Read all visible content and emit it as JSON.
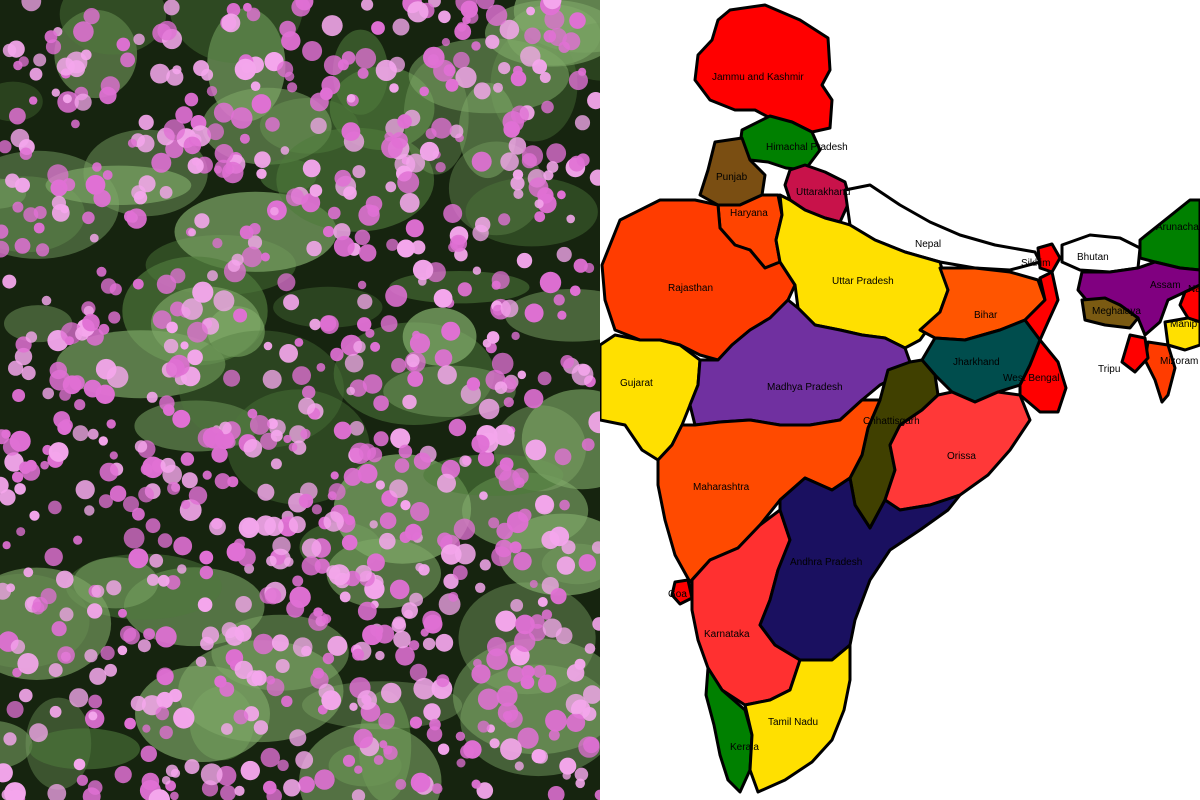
{
  "panels": {
    "left": {
      "kind": "micrograph",
      "palette": {
        "background": "#16240f",
        "cell": "#4f7a3c",
        "cell_highlight": "#7fa868",
        "particle": "#e070d4",
        "particle_light": "#f4a6ec"
      }
    },
    "right": {
      "kind": "political-map"
    }
  },
  "map": {
    "regions": [
      {
        "id": "jk",
        "name": "Jammu and Kashmir",
        "color": "#ff0000"
      },
      {
        "id": "hp",
        "name": "Himachal Pradesh",
        "color": "#008000"
      },
      {
        "id": "pb",
        "name": "Punjab",
        "color": "#7a4e12"
      },
      {
        "id": "uk",
        "name": "Uttarakhand",
        "color": "#c8124a"
      },
      {
        "id": "hr",
        "name": "Haryana",
        "color": "#ff4400"
      },
      {
        "id": "rj",
        "name": "Rajasthan",
        "color": "#ff3c00"
      },
      {
        "id": "up",
        "name": "Uttar Pradesh",
        "color": "#ffe000"
      },
      {
        "id": "np",
        "name": "Nepal",
        "color": "#ffffff"
      },
      {
        "id": "bt",
        "name": "Bhutan",
        "color": "#ffffff"
      },
      {
        "id": "sk",
        "name": "Sikkim",
        "color": "#ff0000"
      },
      {
        "id": "br",
        "name": "Bihar",
        "color": "#ff5500"
      },
      {
        "id": "gj",
        "name": "Gujarat",
        "color": "#ffe000"
      },
      {
        "id": "mp",
        "name": "Madhya Pradesh",
        "color": "#7030a0"
      },
      {
        "id": "jh",
        "name": "Jharkhand",
        "color": "#004d4d"
      },
      {
        "id": "wb",
        "name": "West Bengal",
        "color": "#ff0000"
      },
      {
        "id": "cg",
        "name": "Chhattisgarh",
        "color": "#404000"
      },
      {
        "id": "or",
        "name": "Orissa",
        "color": "#ff3838"
      },
      {
        "id": "mh",
        "name": "Maharashtra",
        "color": "#ff4a00"
      },
      {
        "id": "ap",
        "name": "Andhra Pradesh",
        "color": "#1a1060"
      },
      {
        "id": "ga",
        "name": "Goa",
        "color": "#ff0000"
      },
      {
        "id": "ka",
        "name": "Karnataka",
        "color": "#ff3030"
      },
      {
        "id": "kl",
        "name": "Kerala",
        "color": "#008000"
      },
      {
        "id": "tn",
        "name": "Tamil Nadu",
        "color": "#ffe000"
      },
      {
        "id": "ar",
        "name": "Arunachal",
        "color": "#008000"
      },
      {
        "id": "as",
        "name": "Assam",
        "color": "#800080"
      },
      {
        "id": "na",
        "name": "Na",
        "color": "#ff0000"
      },
      {
        "id": "ml",
        "name": "Meghalaya",
        "color": "#7a5a12"
      },
      {
        "id": "mn",
        "name": "Manip",
        "color": "#ffe000"
      },
      {
        "id": "mz",
        "name": "Mizoram",
        "color": "#ff3c00"
      },
      {
        "id": "tr",
        "name": "Tripu",
        "color": "#ff0000"
      }
    ]
  }
}
